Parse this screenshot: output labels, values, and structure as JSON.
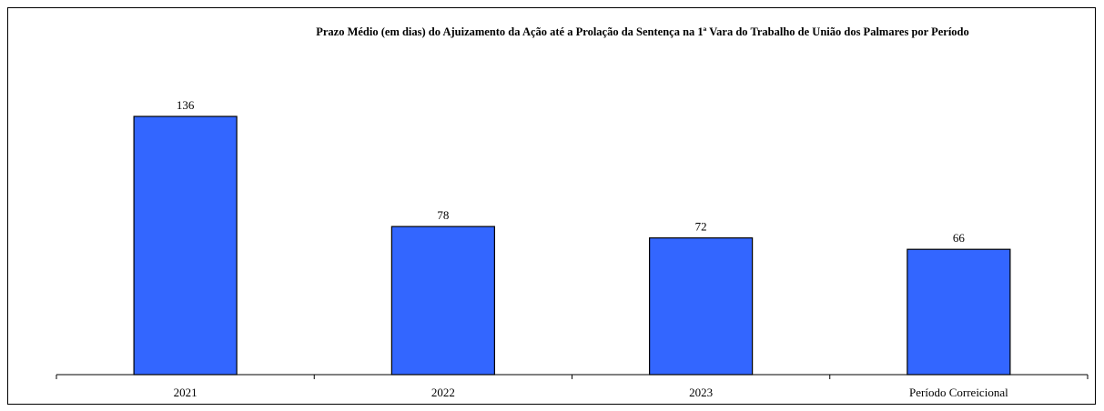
{
  "chart_data": {
    "type": "bar",
    "title": "Prazo Médio (em dias) do Ajuizamento da Ação até a Prolação da Sentença na 1ª Vara do Trabalho de União dos Palmares por Período",
    "categories": [
      "2021",
      "2022",
      "2023",
      "Período Correicional"
    ],
    "values": [
      136,
      78,
      72,
      66
    ],
    "color": "#3366ff"
  }
}
